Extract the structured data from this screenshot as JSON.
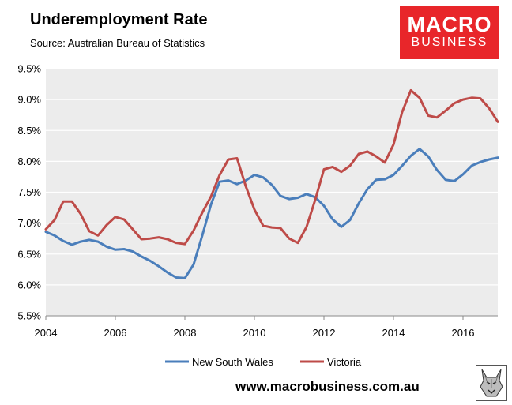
{
  "header": {
    "title": "Underemployment Rate",
    "subtitle": "Source: Australian Bureau of Statistics"
  },
  "logo": {
    "line1": "MACRO",
    "line2": "BUSINESS",
    "color": "#e8262a"
  },
  "footer": {
    "url": "www.macrobusiness.com.au"
  },
  "colors": {
    "plot_bg": "#ececec",
    "grid": "#ffffff",
    "nsw": "#4a7ebb",
    "vic": "#be4b48"
  },
  "chart_data": {
    "type": "line",
    "title": "Underemployment Rate",
    "xlabel": "",
    "ylabel": "",
    "xlim": [
      2004,
      2017
    ],
    "ylim": [
      5.5,
      9.5
    ],
    "x_ticks": [
      2004,
      2006,
      2008,
      2010,
      2012,
      2014,
      2016
    ],
    "x_tick_labels": [
      "2004",
      "2006",
      "2008",
      "2010",
      "2012",
      "2014",
      "2016"
    ],
    "y_ticks": [
      5.5,
      6.0,
      6.5,
      7.0,
      7.5,
      8.0,
      8.5,
      9.0,
      9.5
    ],
    "y_tick_labels": [
      "5.5%",
      "6.0%",
      "6.5%",
      "7.0%",
      "7.5%",
      "8.0%",
      "8.5%",
      "9.0%",
      "9.5%"
    ],
    "grid": true,
    "legend_position": "bottom",
    "series": [
      {
        "name": "New South Wales",
        "color": "#4a7ebb",
        "x": [
          2004.0,
          2004.25,
          2004.5,
          2004.75,
          2005.0,
          2005.25,
          2005.5,
          2005.75,
          2006.0,
          2006.25,
          2006.5,
          2006.75,
          2007.0,
          2007.25,
          2007.5,
          2007.75,
          2008.0,
          2008.25,
          2008.5,
          2008.75,
          2009.0,
          2009.25,
          2009.5,
          2009.75,
          2010.0,
          2010.25,
          2010.5,
          2010.75,
          2011.0,
          2011.25,
          2011.5,
          2011.75,
          2012.0,
          2012.25,
          2012.5,
          2012.75,
          2013.0,
          2013.25,
          2013.5,
          2013.75,
          2014.0,
          2014.25,
          2014.5,
          2014.75,
          2015.0,
          2015.25,
          2015.5,
          2015.75,
          2016.0,
          2016.25,
          2016.5,
          2016.75,
          2017.0
        ],
        "values": [
          6.86,
          6.8,
          6.71,
          6.65,
          6.7,
          6.73,
          6.7,
          6.62,
          6.57,
          6.58,
          6.54,
          6.46,
          6.39,
          6.3,
          6.2,
          6.12,
          6.11,
          6.33,
          6.8,
          7.3,
          7.67,
          7.69,
          7.63,
          7.69,
          7.78,
          7.74,
          7.62,
          7.44,
          7.39,
          7.41,
          7.47,
          7.42,
          7.28,
          7.06,
          6.94,
          7.05,
          7.32,
          7.55,
          7.7,
          7.71,
          7.78,
          7.93,
          8.09,
          8.2,
          8.08,
          7.86,
          7.7,
          7.68,
          7.79,
          7.93,
          7.99,
          8.03,
          8.06
        ]
      },
      {
        "name": "Victoria",
        "color": "#be4b48",
        "x": [
          2004.0,
          2004.25,
          2004.5,
          2004.75,
          2005.0,
          2005.25,
          2005.5,
          2005.75,
          2006.0,
          2006.25,
          2006.5,
          2006.75,
          2007.0,
          2007.25,
          2007.5,
          2007.75,
          2008.0,
          2008.25,
          2008.5,
          2008.75,
          2009.0,
          2009.25,
          2009.5,
          2009.75,
          2010.0,
          2010.25,
          2010.5,
          2010.75,
          2011.0,
          2011.25,
          2011.5,
          2011.75,
          2012.0,
          2012.25,
          2012.5,
          2012.75,
          2013.0,
          2013.25,
          2013.5,
          2013.75,
          2014.0,
          2014.25,
          2014.5,
          2014.75,
          2015.0,
          2015.25,
          2015.5,
          2015.75,
          2016.0,
          2016.25,
          2016.5,
          2016.75,
          2017.0
        ],
        "values": [
          6.9,
          7.05,
          7.35,
          7.35,
          7.15,
          6.87,
          6.8,
          6.97,
          7.1,
          7.06,
          6.9,
          6.74,
          6.75,
          6.77,
          6.74,
          6.68,
          6.66,
          6.88,
          7.17,
          7.43,
          7.78,
          8.03,
          8.05,
          7.6,
          7.22,
          6.96,
          6.93,
          6.92,
          6.75,
          6.68,
          6.94,
          7.38,
          7.87,
          7.91,
          7.83,
          7.93,
          8.12,
          8.16,
          8.08,
          7.98,
          8.27,
          8.8,
          9.15,
          9.03,
          8.74,
          8.71,
          8.82,
          8.94,
          9.0,
          9.03,
          9.02,
          8.86,
          8.64
        ]
      }
    ]
  }
}
